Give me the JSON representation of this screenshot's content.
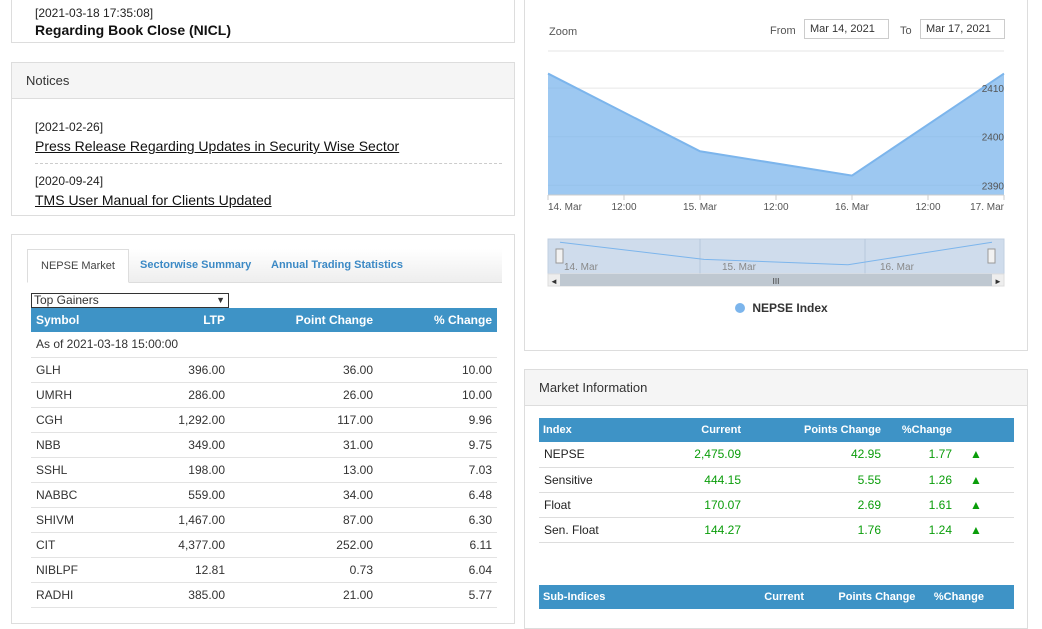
{
  "news": {
    "date": "[2021-03-18 17:35:08]",
    "title": "Regarding Book Close (NICL)"
  },
  "notices": {
    "heading": "Notices",
    "items": [
      {
        "date": "[2021-02-26]",
        "title": "Press Release Regarding Updates in Security Wise Sector"
      },
      {
        "date": "[2020-09-24]",
        "title": "TMS User Manual for Clients Updated"
      }
    ]
  },
  "market_tabs": {
    "tabs": [
      "NEPSE Market",
      "Sectorwise Summary",
      "Annual Trading Statistics"
    ],
    "select_value": "Top Gainers",
    "headers": [
      "Symbol",
      "LTP",
      "Point Change",
      "% Change"
    ],
    "as_of": "As of 2021-03-18 15:00:00",
    "rows": [
      [
        "GLH",
        "396.00",
        "36.00",
        "10.00"
      ],
      [
        "UMRH",
        "286.00",
        "26.00",
        "10.00"
      ],
      [
        "CGH",
        "1,292.00",
        "117.00",
        "9.96"
      ],
      [
        "NBB",
        "349.00",
        "31.00",
        "9.75"
      ],
      [
        "SSHL",
        "198.00",
        "13.00",
        "7.03"
      ],
      [
        "NABBC",
        "559.00",
        "34.00",
        "6.48"
      ],
      [
        "SHIVM",
        "1,467.00",
        "87.00",
        "6.30"
      ],
      [
        "CIT",
        "4,377.00",
        "252.00",
        "6.11"
      ],
      [
        "NIBLPF",
        "12.81",
        "0.73",
        "6.04"
      ],
      [
        "RADHI",
        "385.00",
        "21.00",
        "5.77"
      ]
    ]
  },
  "chart": {
    "zoom_label": "Zoom",
    "from_label": "From",
    "from_value": "Mar 14, 2021",
    "to_label": "To",
    "to_value": "Mar 17, 2021",
    "xticks": [
      "14. Mar",
      "12:00",
      "15. Mar",
      "12:00",
      "16. Mar",
      "12:00",
      "17. Mar"
    ],
    "nav_ticks": [
      "14. Mar",
      "15. Mar",
      "16. Mar"
    ],
    "nav_handle": "III",
    "legend": "NEPSE Index",
    "color": "#7cb5ec"
  },
  "chart_data": {
    "type": "area",
    "x": [
      "2021-03-14",
      "2021-03-15",
      "2021-03-16",
      "2021-03-17"
    ],
    "series": [
      {
        "name": "NEPSE Index",
        "values": [
          2413,
          2397,
          2392,
          2413
        ]
      }
    ],
    "ylim": [
      2388,
      2416
    ],
    "yticks": [
      2390,
      2400,
      2410
    ]
  },
  "market_info": {
    "heading": "Market Information",
    "headers": [
      "Index",
      "Current",
      "Points Change",
      "%Change"
    ],
    "rows": [
      [
        "NEPSE",
        "2,475.09",
        "42.95",
        "1.77"
      ],
      [
        "Sensitive",
        "444.15",
        "5.55",
        "1.26"
      ],
      [
        "Float",
        "170.07",
        "2.69",
        "1.61"
      ],
      [
        "Sen. Float",
        "144.27",
        "1.76",
        "1.24"
      ]
    ],
    "arrow": "▲",
    "sub_headers": [
      "Sub-Indices",
      "Current",
      "Points Change",
      "%Change"
    ]
  }
}
